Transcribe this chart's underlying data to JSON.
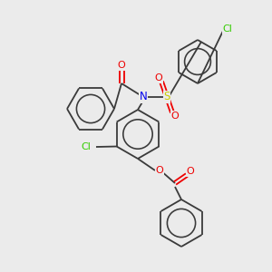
{
  "background_color": "#ebebeb",
  "bond_color": "#3a3a3a",
  "atom_colors": {
    "N": "#0000ee",
    "O": "#ee0000",
    "S": "#cccc00",
    "Cl": "#33cc00"
  },
  "figsize": [
    3.0,
    3.0
  ],
  "dpi": 100,
  "lw": 1.3
}
